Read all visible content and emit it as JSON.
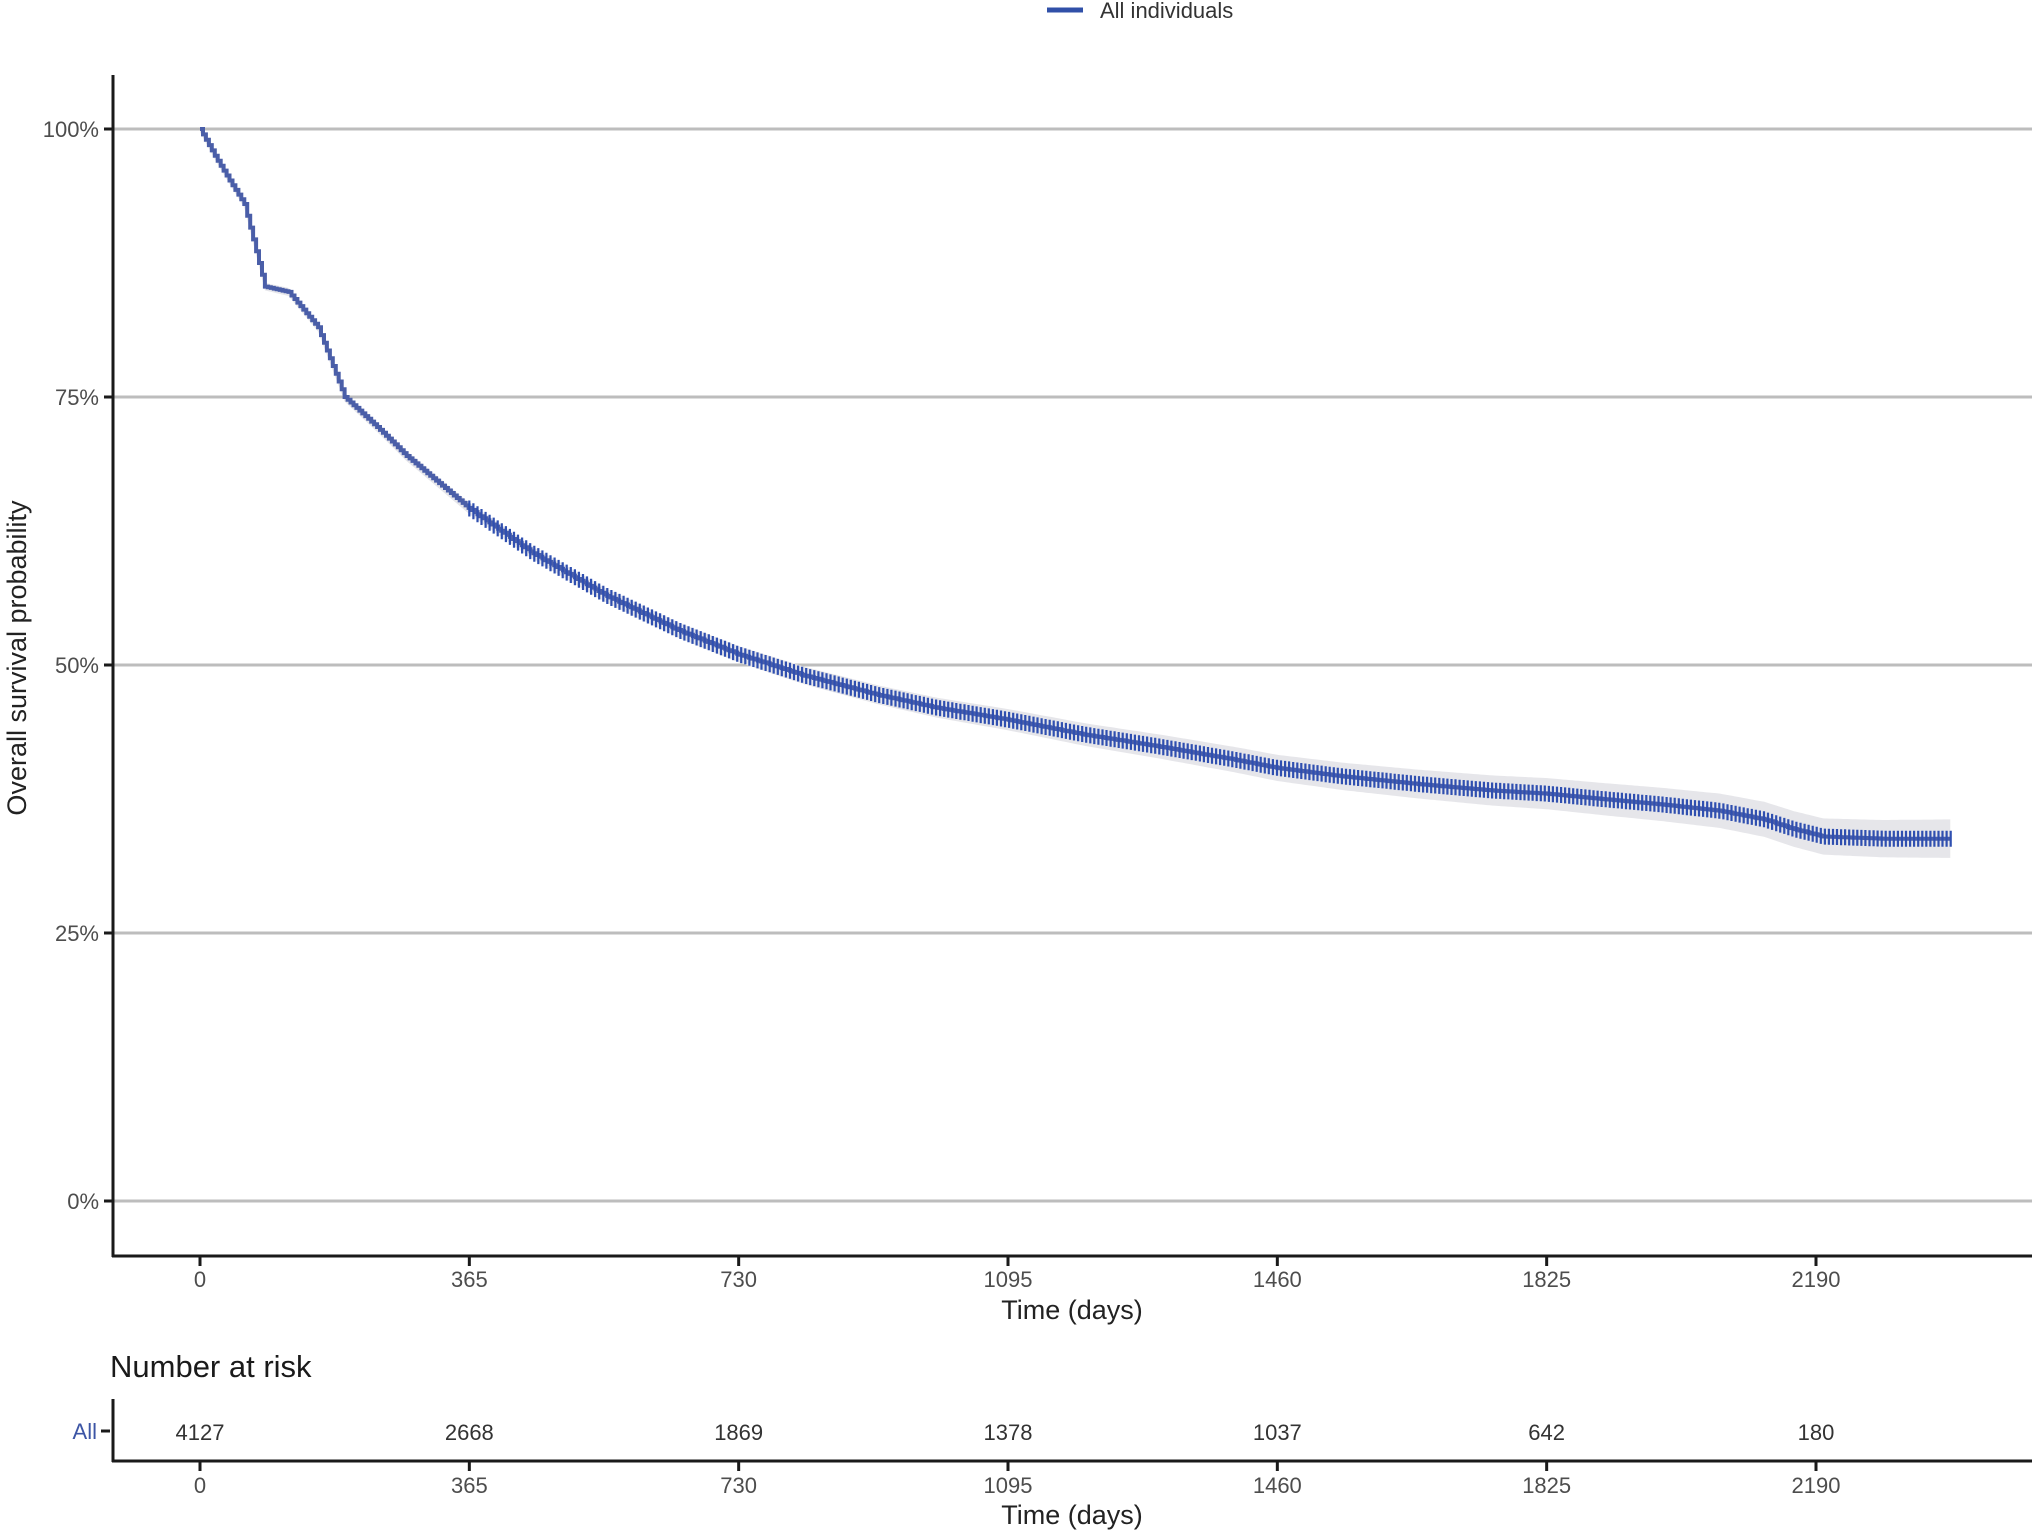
{
  "legend": {
    "items": [
      {
        "label": "All individuals",
        "color": "#3050a8"
      }
    ]
  },
  "main_plot": {
    "ylabel": "Overall survival probability",
    "xlabel": "Time (days)",
    "y_ticks": [
      "0%",
      "25%",
      "50%",
      "75%",
      "100%"
    ],
    "x_ticks": [
      "0",
      "365",
      "730",
      "1095",
      "1460",
      "1825",
      "2190"
    ]
  },
  "risk_table": {
    "title": "Number at risk",
    "strata_label": "All",
    "values": [
      "4127",
      "2668",
      "1869",
      "1378",
      "1037",
      "642",
      "180"
    ],
    "x_ticks": [
      "0",
      "365",
      "730",
      "1095",
      "1460",
      "1825",
      "2190"
    ],
    "xlabel": "Time (days)"
  },
  "colors": {
    "curve": "#4a5ea8",
    "censor": "#2f4fb0",
    "ci_band": "#e6e6ea",
    "grid": "#bdbdbd",
    "axis": "#1a1a1a"
  },
  "chart_data": {
    "type": "line",
    "title": "",
    "subtype": "kaplan-meier",
    "xlabel": "Time (days)",
    "ylabel": "Overall survival probability",
    "xlim": [
      0,
      2375
    ],
    "ylim": [
      0,
      1
    ],
    "x_ticks": [
      0,
      365,
      730,
      1095,
      1460,
      1825,
      2190
    ],
    "y_ticks": [
      0,
      0.25,
      0.5,
      0.75,
      1.0
    ],
    "grid": "horizontal",
    "legend_position": "top",
    "series": [
      {
        "name": "All individuals",
        "x": [
          0,
          20,
          40,
          60,
          88,
          120,
          160,
          196,
          240,
          280,
          320,
          365,
          450,
          550,
          650,
          730,
          820,
          920,
          1000,
          1095,
          1200,
          1300,
          1400,
          1460,
          1550,
          1650,
          1750,
          1825,
          1900,
          1980,
          2060,
          2120,
          2160,
          2200,
          2280,
          2375
        ],
        "y": [
          1.0,
          0.975,
          0.952,
          0.93,
          0.853,
          0.88,
          0.815,
          0.75,
          0.722,
          0.695,
          0.672,
          0.646,
          0.605,
          0.565,
          0.532,
          0.51,
          0.49,
          0.472,
          0.46,
          0.449,
          0.435,
          0.424,
          0.412,
          0.404,
          0.396,
          0.389,
          0.383,
          0.38,
          0.375,
          0.37,
          0.364,
          0.356,
          0.347,
          0.34,
          0.338,
          0.338
        ],
        "ci_halfwidth": 0.015,
        "censor_marks_from": 365
      }
    ],
    "risk_table": {
      "times": [
        0,
        365,
        730,
        1095,
        1460,
        1825,
        2190
      ],
      "All": [
        4127,
        2668,
        1869,
        1378,
        1037,
        642,
        180
      ]
    }
  }
}
